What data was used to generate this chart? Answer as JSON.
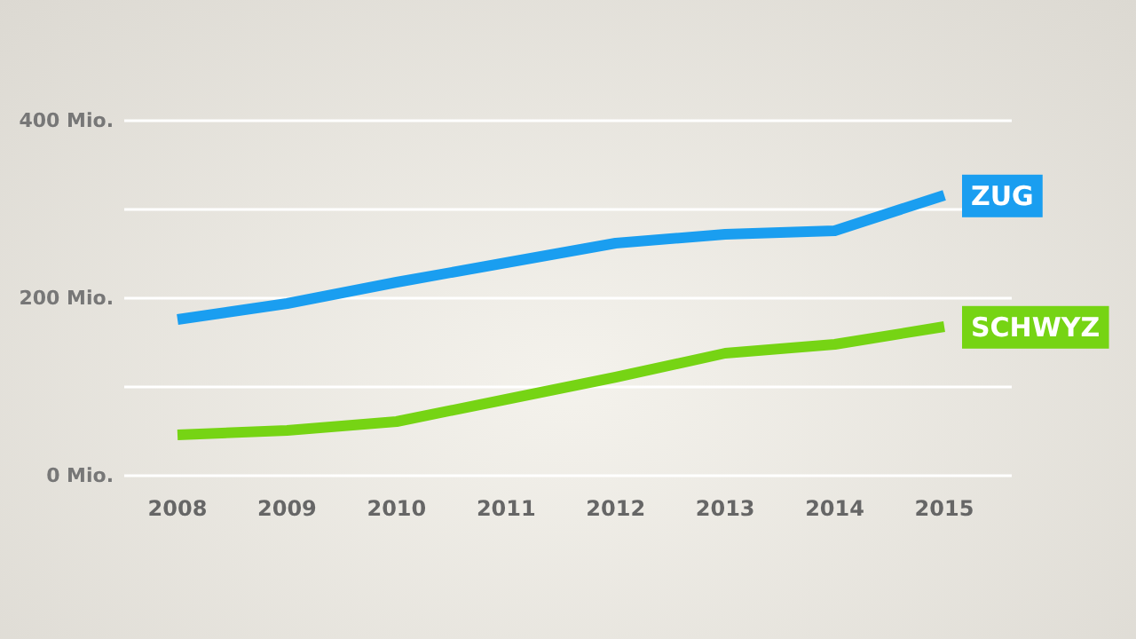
{
  "chart_data": {
    "type": "line",
    "categories": [
      "2008",
      "2009",
      "2010",
      "2011",
      "2012",
      "2013",
      "2014",
      "2015"
    ],
    "series": [
      {
        "name": "ZUG",
        "color": "#1a9ef0",
        "values": [
          176,
          194,
          218,
          240,
          262,
          272,
          276,
          316
        ]
      },
      {
        "name": "SCHWYZ",
        "color": "#76d414",
        "values": [
          46,
          51,
          61,
          86,
          111,
          138,
          148,
          168
        ]
      }
    ],
    "ylim": [
      0,
      400
    ],
    "yticks": [
      {
        "value": 0,
        "label": "0 Mio."
      },
      {
        "value": 100,
        "label": null
      },
      {
        "value": 200,
        "label": "200 Mio."
      },
      {
        "value": 300,
        "label": null
      },
      {
        "value": 400,
        "label": "400 Mio."
      }
    ],
    "grid": "y",
    "line_style": "solid",
    "marker": "none"
  }
}
